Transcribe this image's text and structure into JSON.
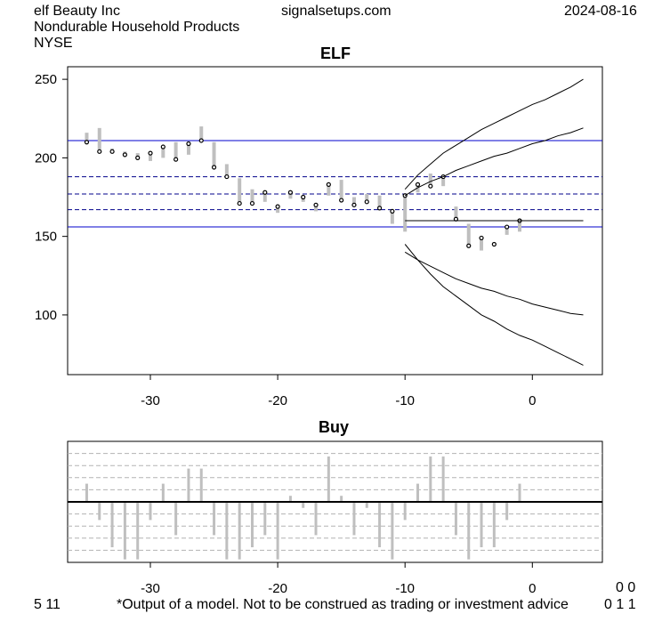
{
  "header": {
    "company": "elf Beauty Inc",
    "industry": "Nondurable Household Products",
    "exchange": "NYSE",
    "site": "signalsetups.com",
    "date": "2024-08-16"
  },
  "footer": {
    "left_code": "5 11",
    "disclaimer": "*Output of a model. Not to be construed as trading or investment advice",
    "right_top": "0 0",
    "right_bottom": "0 1 1"
  },
  "colors": {
    "bar": "#bfbfbf",
    "hline_solid": "#0000cd",
    "hline_dash": "#00008b",
    "curve": "#000000"
  },
  "chart_data": [
    {
      "type": "line",
      "title": "ELF",
      "xlim": [
        -36.5,
        5.5
      ],
      "ylim": [
        62,
        258
      ],
      "xticks": [
        -30,
        -20,
        -10,
        0
      ],
      "yticks": [
        100,
        150,
        200,
        250
      ],
      "hlines_solid": [
        211,
        156
      ],
      "hlines_dashed": [
        188,
        177,
        167
      ],
      "last_price": {
        "x_start": -10,
        "x_end": 4,
        "value": 160
      },
      "candles": [
        {
          "x": -35,
          "open": 216,
          "close": 210
        },
        {
          "x": -34,
          "open": 219,
          "close": 204
        },
        {
          "x": -33,
          "open": 206,
          "close": 204
        },
        {
          "x": -32,
          "open": 204,
          "close": 202
        },
        {
          "x": -31,
          "open": 203,
          "close": 200
        },
        {
          "x": -30,
          "open": 198,
          "close": 203
        },
        {
          "x": -29,
          "open": 200,
          "close": 207
        },
        {
          "x": -28,
          "open": 210,
          "close": 199
        },
        {
          "x": -27,
          "open": 202,
          "close": 209
        },
        {
          "x": -26,
          "open": 220,
          "close": 211
        },
        {
          "x": -25,
          "open": 210,
          "close": 194
        },
        {
          "x": -24,
          "open": 196,
          "close": 188
        },
        {
          "x": -23,
          "open": 187,
          "close": 171
        },
        {
          "x": -22,
          "open": 180,
          "close": 171
        },
        {
          "x": -21,
          "open": 172,
          "close": 178
        },
        {
          "x": -20,
          "open": 165,
          "close": 169
        },
        {
          "x": -19,
          "open": 174,
          "close": 178
        },
        {
          "x": -18,
          "open": 172,
          "close": 175
        },
        {
          "x": -17,
          "open": 166,
          "close": 170
        },
        {
          "x": -16,
          "open": 176,
          "close": 183
        },
        {
          "x": -15,
          "open": 186,
          "close": 173
        },
        {
          "x": -14,
          "open": 175,
          "close": 170
        },
        {
          "x": -13,
          "open": 177,
          "close": 172
        },
        {
          "x": -12,
          "open": 176,
          "close": 168
        },
        {
          "x": -11,
          "open": 158,
          "close": 166
        },
        {
          "x": -10,
          "open": 153,
          "close": 176
        },
        {
          "x": -9,
          "open": 178,
          "close": 183
        },
        {
          "x": -8,
          "open": 190,
          "close": 182
        },
        {
          "x": -7,
          "open": 182,
          "close": 188
        },
        {
          "x": -6,
          "open": 169,
          "close": 161
        },
        {
          "x": -5,
          "open": 158,
          "close": 144
        },
        {
          "x": -4,
          "open": 141,
          "close": 149
        },
        {
          "x": -3,
          "open": 144,
          "close": 145
        },
        {
          "x": -2,
          "open": 151,
          "close": 156
        },
        {
          "x": -1,
          "open": 153,
          "close": 160
        }
      ],
      "forecast_curves": [
        {
          "x": [
            -10,
            -9,
            -8,
            -7,
            -6,
            -5,
            -4,
            -3,
            -2,
            -1,
            0,
            1,
            2,
            3,
            4
          ],
          "y": [
            180,
            189,
            196,
            203,
            208,
            213,
            218,
            222,
            226,
            230,
            234,
            237,
            241,
            245,
            250
          ]
        },
        {
          "x": [
            -10,
            -9,
            -8,
            -7,
            -6,
            -5,
            -4,
            -3,
            -2,
            -1,
            0,
            1,
            2,
            3,
            4
          ],
          "y": [
            176,
            181,
            185,
            188,
            192,
            195,
            198,
            201,
            203,
            206,
            209,
            211,
            214,
            216,
            219
          ]
        },
        {
          "x": [
            -10,
            -9,
            -8,
            -7,
            -6,
            -5,
            -4,
            -3,
            -2,
            -1,
            0,
            1,
            2,
            3,
            4
          ],
          "y": [
            140,
            135,
            131,
            127,
            123,
            120,
            117,
            115,
            112,
            110,
            107,
            105,
            103,
            101,
            100
          ]
        },
        {
          "x": [
            -10,
            -9,
            -8,
            -7,
            -6,
            -5,
            -4,
            -3,
            -2,
            -1,
            0,
            1,
            2,
            3,
            4
          ],
          "y": [
            145,
            135,
            126,
            118,
            112,
            106,
            100,
            96,
            91,
            87,
            84,
            80,
            76,
            72,
            68
          ]
        }
      ]
    },
    {
      "type": "bar",
      "title": "Buy",
      "xlim": [
        -36.5,
        5.5
      ],
      "ylim": [
        -1,
        1
      ],
      "xticks": [
        -30,
        -20,
        -10,
        0
      ],
      "x": [
        -35,
        -34,
        -33,
        -32,
        -31,
        -30,
        -29,
        -28,
        -27,
        -26,
        -25,
        -24,
        -23,
        -22,
        -21,
        -20,
        -19,
        -18,
        -17,
        -16,
        -15,
        -14,
        -13,
        -12,
        -11,
        -10,
        -9,
        -8,
        -7,
        -6,
        -5,
        -4,
        -3,
        -2,
        -1
      ],
      "values": [
        0.3,
        -0.3,
        -0.75,
        -0.95,
        -0.95,
        -0.3,
        0.3,
        -0.55,
        0.55,
        0.55,
        -0.55,
        -0.95,
        -0.95,
        -0.75,
        -0.55,
        -0.95,
        0.1,
        -0.1,
        -0.55,
        0.75,
        0.1,
        -0.55,
        -0.1,
        -0.75,
        -0.95,
        -0.3,
        0.3,
        0.75,
        0.75,
        -0.55,
        -0.95,
        -0.75,
        -0.75,
        -0.3,
        0.3
      ]
    }
  ]
}
